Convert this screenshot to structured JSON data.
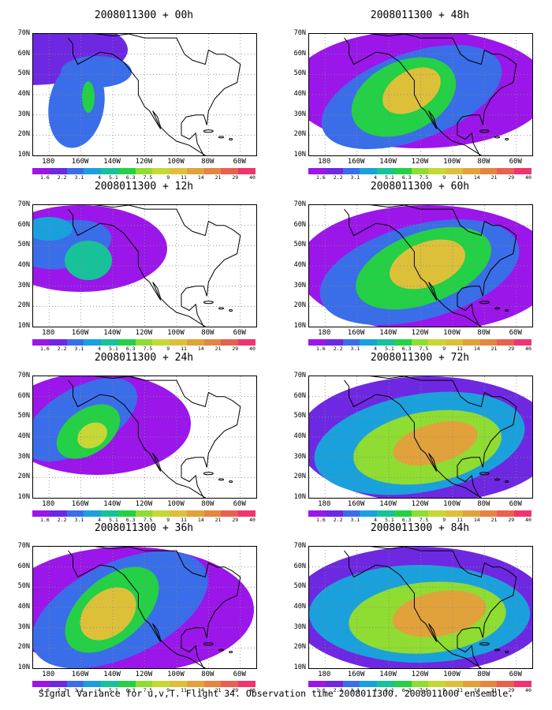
{
  "caption": "Signal Variance for u,v,T. Flight 34. Observation time 2008011300. 2008011000 ensemble.",
  "y_ticks": [
    "70N",
    "60N",
    "50N",
    "40N",
    "30N",
    "20N",
    "10N"
  ],
  "x_ticks": [
    "180",
    "160W",
    "140W",
    "120W",
    "100W",
    "80W",
    "60W"
  ],
  "colorbar": {
    "labels": [
      "1.6",
      "2.2",
      "3.1",
      "4",
      "5.1",
      "6.3",
      "7.5",
      "9",
      "11",
      "14",
      "21",
      "29",
      "40"
    ],
    "colors": [
      "#ffffff",
      "#9b16e9",
      "#6e28e2",
      "#3a6de8",
      "#1aa1dc",
      "#17c29a",
      "#24d045",
      "#8fdc32",
      "#c6d836",
      "#ddc03a",
      "#e1a23c",
      "#e48542",
      "#e8604f",
      "#ee3570"
    ]
  },
  "panels": [
    {
      "title": "2008011300 + 00h",
      "level": 1
    },
    {
      "title": "2008011300 + 48h",
      "level": 4
    },
    {
      "title": "2008011300 + 12h",
      "level": 2
    },
    {
      "title": "2008011300 + 60h",
      "level": 5
    },
    {
      "title": "2008011300 + 24h",
      "level": 3
    },
    {
      "title": "2008011300 + 72h",
      "level": 6
    },
    {
      "title": "2008011300 + 36h",
      "level": 4
    },
    {
      "title": "2008011300 + 84h",
      "level": 7
    }
  ]
}
